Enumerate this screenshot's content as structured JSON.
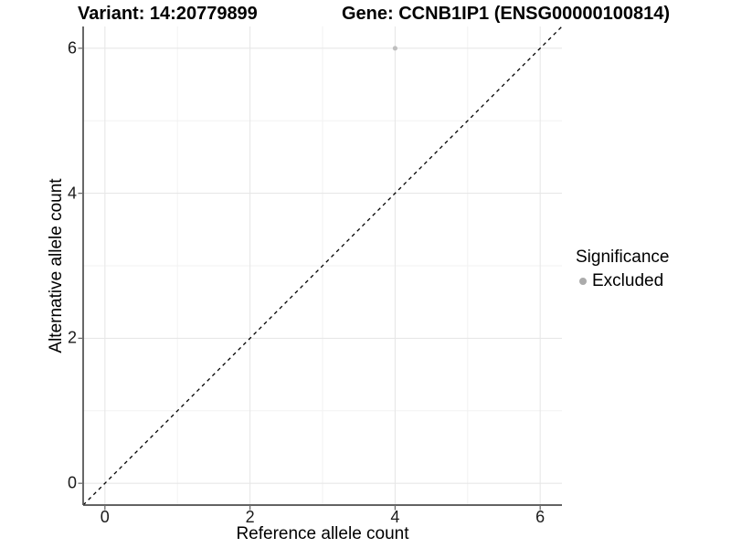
{
  "chart_data": {
    "type": "scatter",
    "title_left": "Variant: 14:20779899",
    "title_right": "Gene: CCNB1IP1 (ENSG00000100814)",
    "xlabel": "Reference allele count",
    "ylabel": "Alternative allele count",
    "xlim": [
      -0.3,
      6.3
    ],
    "ylim": [
      -0.3,
      6.3
    ],
    "x_ticks": [
      0,
      2,
      4,
      6
    ],
    "y_ticks": [
      0,
      2,
      4,
      6
    ],
    "x_minor_ticks": [
      1,
      3,
      5
    ],
    "y_minor_ticks": [
      1,
      3,
      5
    ],
    "grid": true,
    "points": [
      {
        "x": 4,
        "y": 6,
        "significance": "Excluded"
      }
    ],
    "reference_line": {
      "type": "identity",
      "slope": 1,
      "intercept": 0,
      "style": "dashed",
      "color": "#000000"
    },
    "legend": {
      "title": "Significance",
      "position": "right",
      "items": [
        {
          "label": "Excluded",
          "color": "#ababab"
        }
      ]
    },
    "colors": {
      "background": "#ffffff",
      "point": "#bfbfbf",
      "grid_major": "#e7e7e7",
      "grid_minor": "#f2f2f2",
      "axis_line": "#4d4d4d",
      "tick_mark": "#6e6e6e",
      "tick_label": "#1a1a1a"
    }
  }
}
